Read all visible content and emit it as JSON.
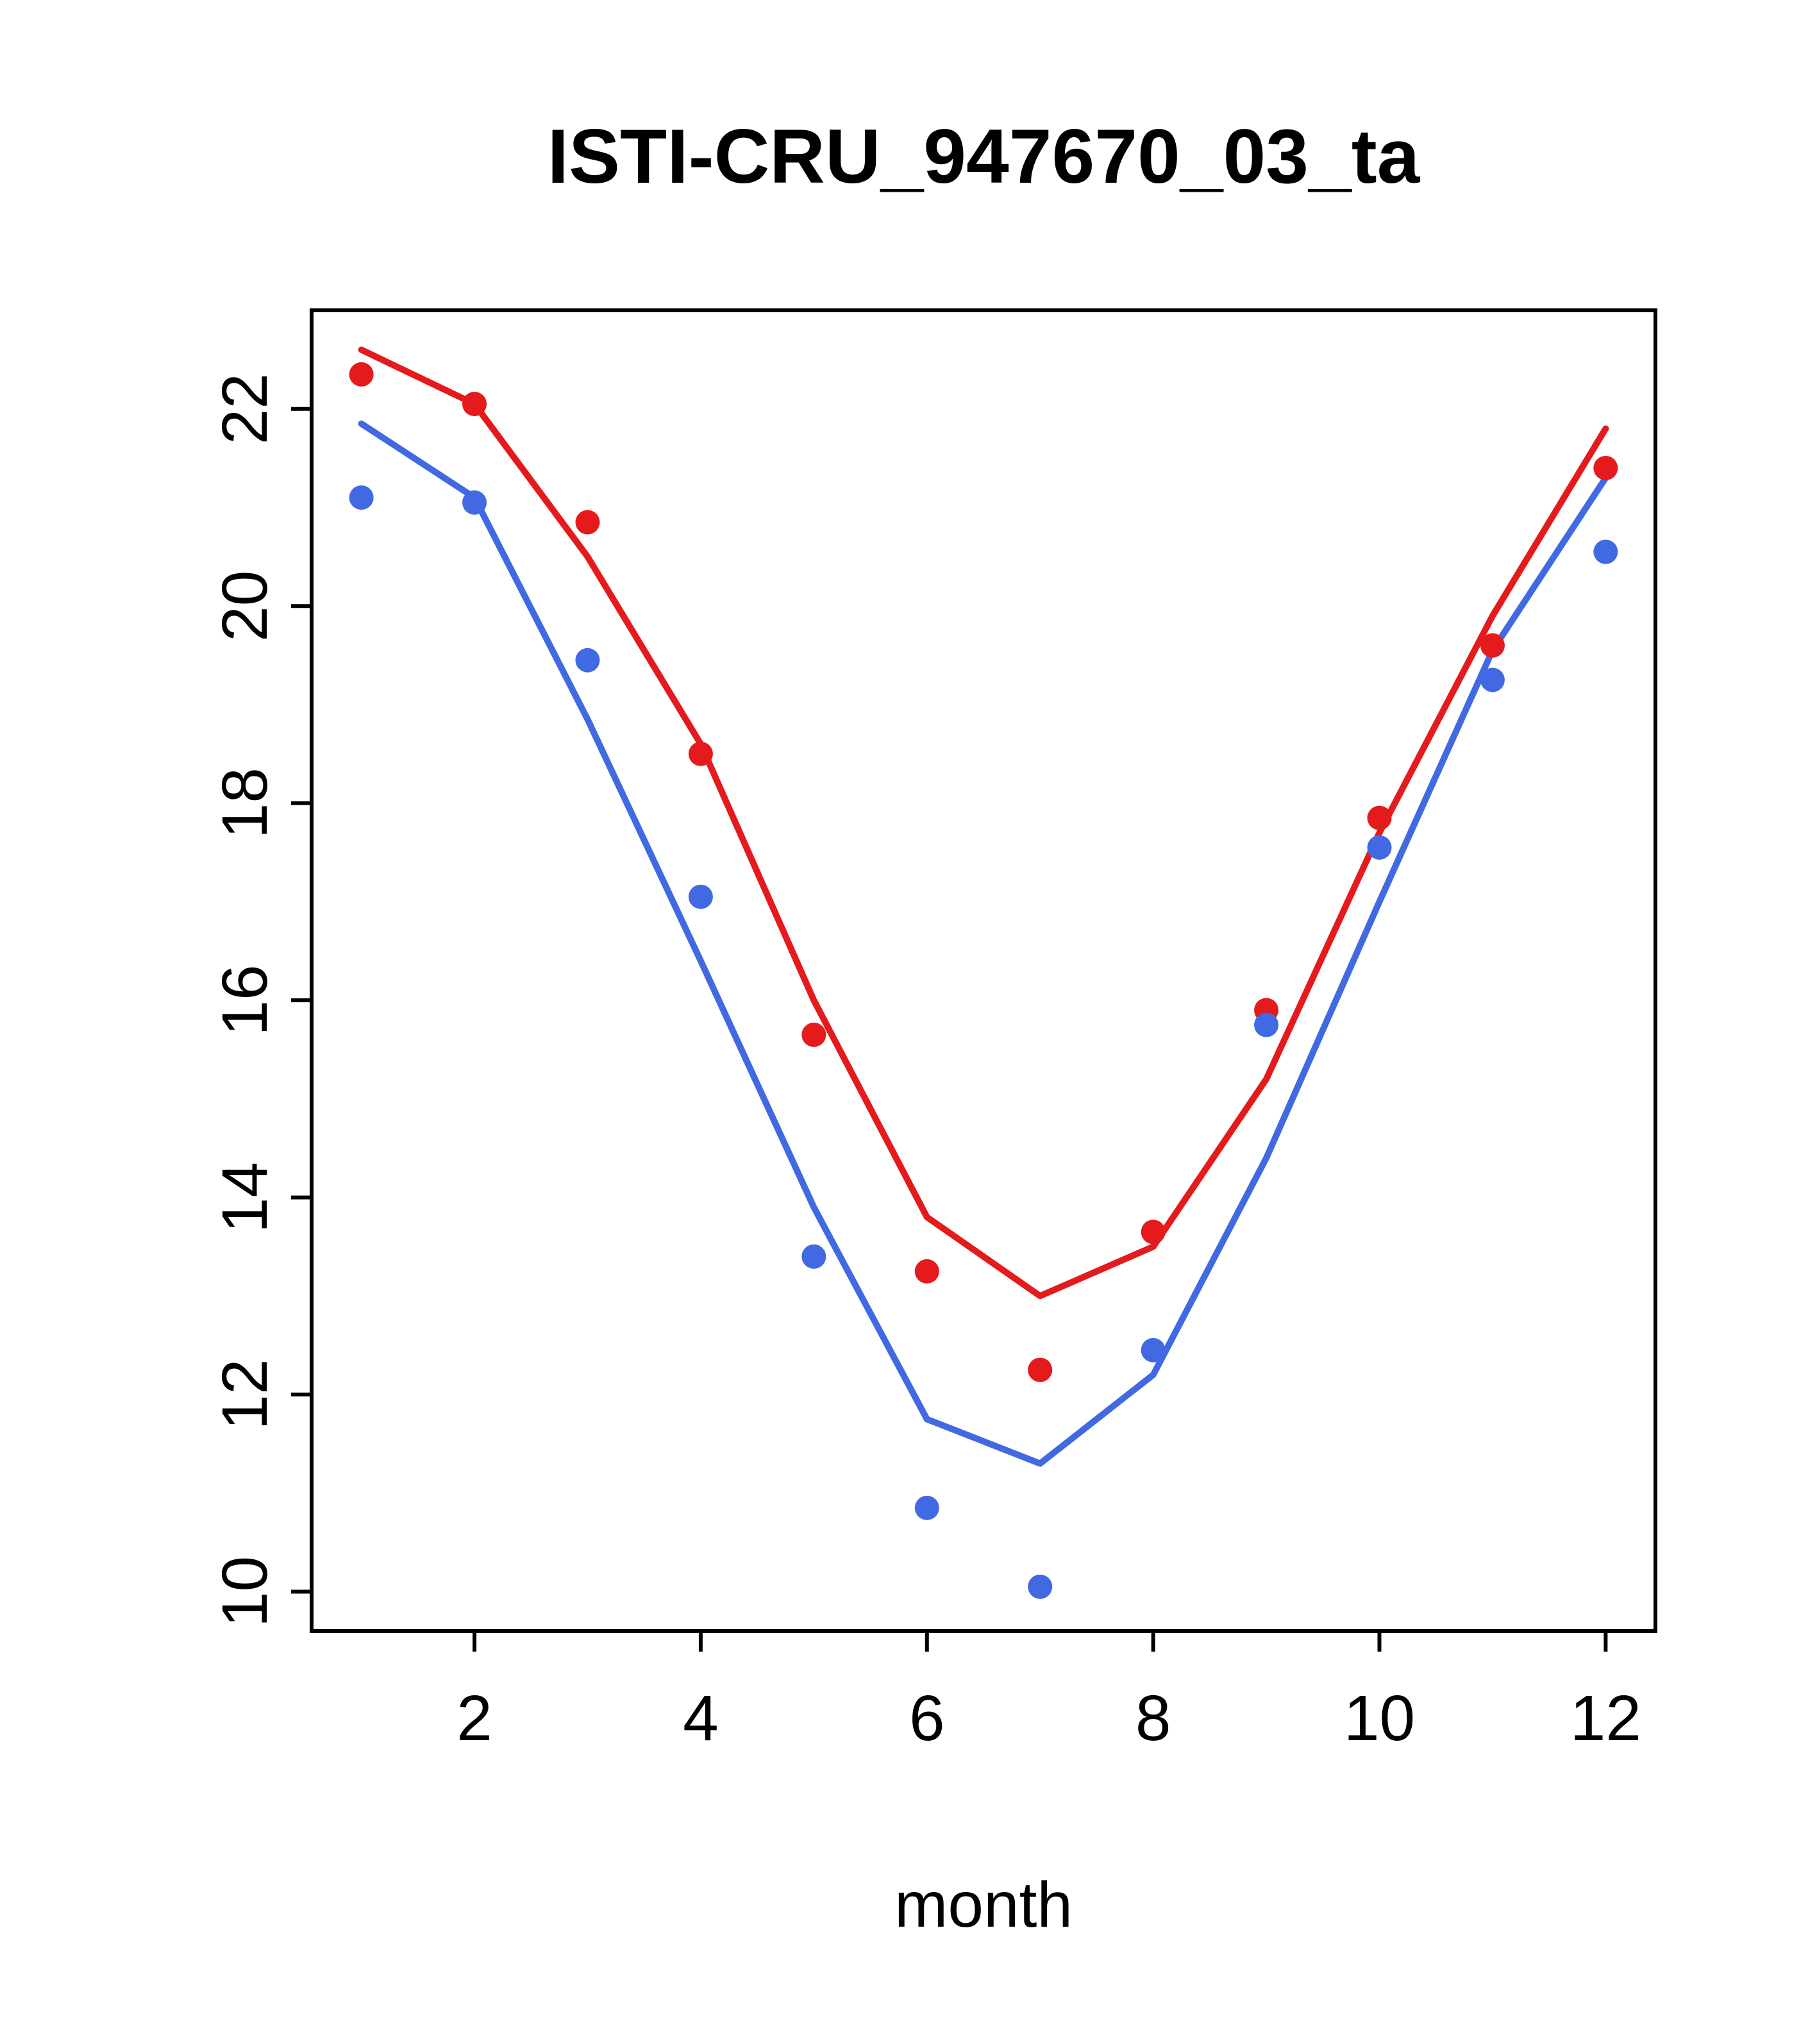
{
  "figure": {
    "title": "ISTI-CRU_947670_03_ta"
  },
  "chart_data": {
    "type": "line",
    "title": "ISTI-CRU_947670_03_ta",
    "xlabel": "month",
    "ylabel": "",
    "x": [
      1,
      2,
      3,
      4,
      5,
      6,
      7,
      8,
      9,
      10,
      11,
      12
    ],
    "xlim": [
      0.56,
      12.44
    ],
    "ylim": [
      9.6,
      23.0
    ],
    "x_ticks": [
      2,
      4,
      6,
      8,
      10,
      12
    ],
    "y_ticks": [
      10,
      12,
      14,
      16,
      18,
      20,
      22
    ],
    "grid": false,
    "legend": "none",
    "colors": {
      "red": "#e41a1c",
      "blue": "#4169e1",
      "axis": "#000000"
    },
    "series": [
      {
        "name": "red-line",
        "type": "line",
        "color": "#e41a1c",
        "values": [
          22.6,
          22.05,
          20.5,
          18.6,
          16.0,
          13.8,
          13.0,
          13.5,
          15.2,
          17.7,
          19.9,
          21.8
        ]
      },
      {
        "name": "blue-line",
        "type": "line",
        "color": "#4169e1",
        "values": [
          21.85,
          21.1,
          18.85,
          16.4,
          13.9,
          11.75,
          11.3,
          12.2,
          14.4,
          17.0,
          19.55,
          21.3
        ]
      },
      {
        "name": "red-points",
        "type": "scatter",
        "color": "#e41a1c",
        "values": [
          22.35,
          22.05,
          20.85,
          18.5,
          15.65,
          13.25,
          12.25,
          13.65,
          15.9,
          17.85,
          19.6,
          21.4
        ]
      },
      {
        "name": "blue-points",
        "type": "scatter",
        "color": "#4169e1",
        "values": [
          21.1,
          21.05,
          19.45,
          17.05,
          13.4,
          10.85,
          10.05,
          12.45,
          15.75,
          17.55,
          19.25,
          20.55
        ]
      }
    ]
  }
}
